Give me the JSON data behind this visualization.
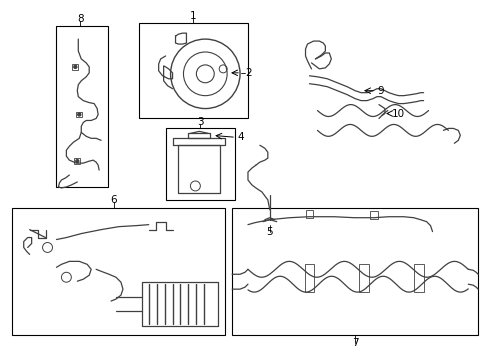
{
  "background_color": "#ffffff",
  "border_color": "#000000",
  "line_color": "#404040",
  "text_color": "#000000",
  "fig_width": 4.89,
  "fig_height": 3.6,
  "dpi": 100
}
